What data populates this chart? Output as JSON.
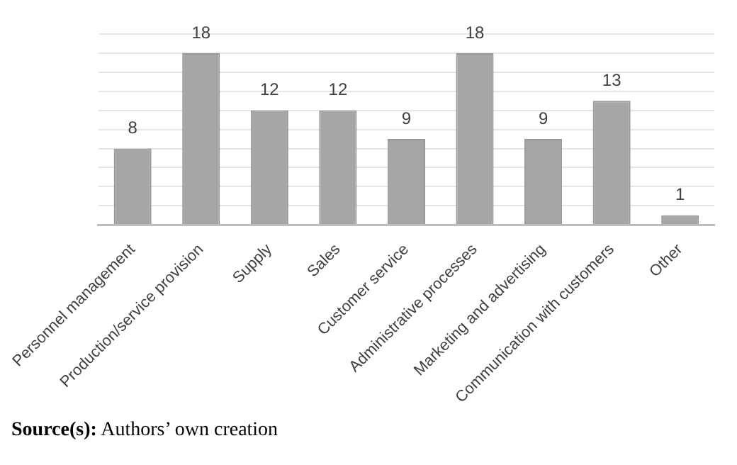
{
  "chart_data": {
    "type": "bar",
    "categories": [
      "Personnel management",
      "Production/service provision",
      "Supply",
      "Sales",
      "Customer service",
      "Administrative processes",
      "Marketing and advertising",
      "Communication with customers",
      "Other"
    ],
    "values": [
      8,
      18,
      12,
      12,
      9,
      18,
      9,
      13,
      1
    ],
    "color": "#a6a6a6",
    "data_labels": true,
    "ylim": [
      0,
      20
    ],
    "yticks": [
      {
        "value": 0,
        "label": null
      },
      {
        "value": 2,
        "label": null
      },
      {
        "value": 4,
        "label": null
      },
      {
        "value": 6,
        "label": null
      },
      {
        "value": 8,
        "label": null
      },
      {
        "value": 10,
        "label": null
      },
      {
        "value": 12,
        "label": null
      },
      {
        "value": 14,
        "label": null
      },
      {
        "value": 16,
        "label": null
      },
      {
        "value": 18,
        "label": null
      },
      {
        "value": 20,
        "label": null
      }
    ],
    "grid": "y",
    "tick_labels": "x",
    "legend": false,
    "annotations": [
      "Source(s): Authors’ own creation"
    ]
  }
}
